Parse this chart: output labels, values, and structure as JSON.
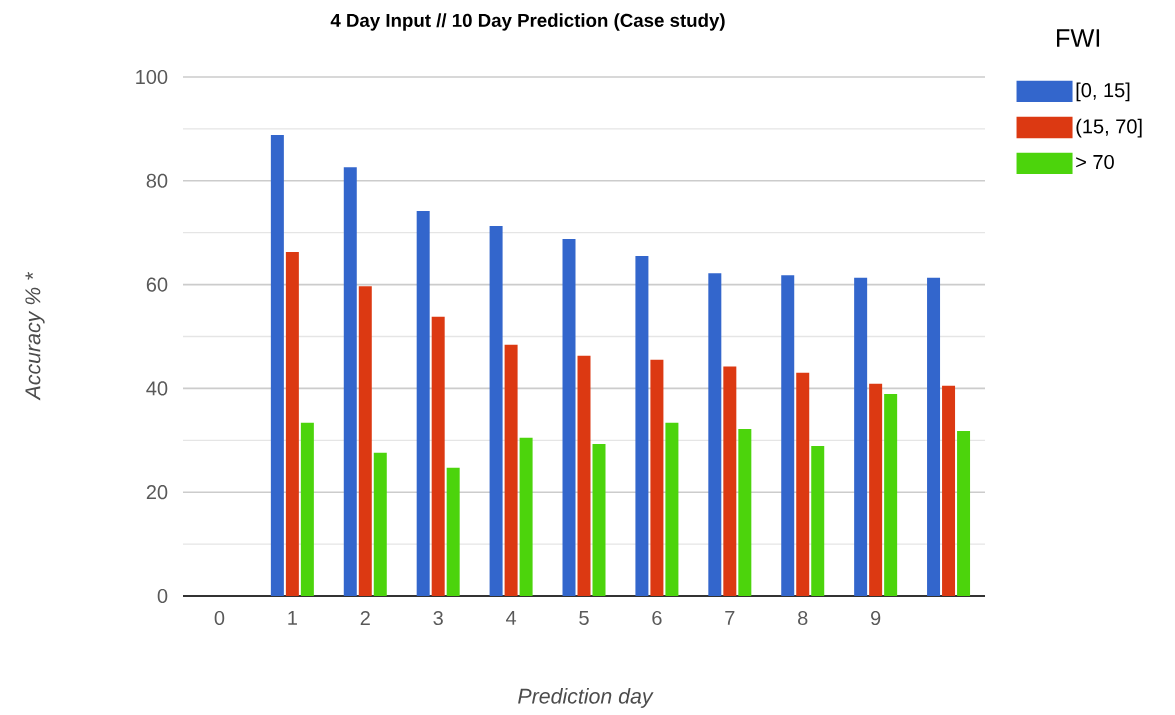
{
  "chart_data": {
    "type": "bar",
    "title": "4 Day Input // 10 Day Prediction (Case study)",
    "xlabel": "Prediction day",
    "ylabel": "Accuracy % *",
    "legend_title": "FWI",
    "categories": [
      "0",
      "1",
      "2",
      "3",
      "4",
      "5",
      "6",
      "7",
      "8",
      "9",
      null
    ],
    "series": [
      {
        "name": "[0, 15]",
        "color": "#3366cc",
        "values": [
          null,
          88.8,
          82.6,
          74.2,
          71.3,
          68.8,
          65.5,
          62.2,
          61.8,
          61.3,
          61.3
        ]
      },
      {
        "name": "(15, 70]",
        "color": "#dc3912",
        "values": [
          null,
          66.3,
          59.7,
          53.8,
          48.4,
          46.3,
          45.5,
          44.2,
          43.0,
          40.9,
          40.5
        ]
      },
      {
        "name": "> 70",
        "color": "#4cd40c",
        "values": [
          null,
          33.4,
          27.6,
          24.7,
          30.5,
          29.3,
          33.4,
          32.2,
          28.9,
          38.9,
          31.8
        ]
      }
    ],
    "ylim": [
      0,
      100
    ],
    "yticks": [
      0,
      {
        "value": 10,
        "label": null
      },
      20,
      {
        "value": 30,
        "label": null
      },
      40,
      {
        "value": 50,
        "label": null
      },
      60,
      {
        "value": 70,
        "label": null
      },
      80,
      {
        "value": 90,
        "label": null
      },
      100
    ],
    "grid": "y",
    "legend": "top right"
  }
}
